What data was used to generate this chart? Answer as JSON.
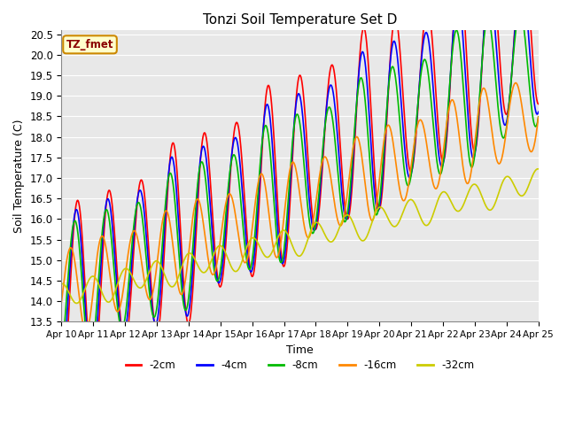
{
  "title": "Tonzi Soil Temperature Set D",
  "xlabel": "Time",
  "ylabel": "Soil Temperature (C)",
  "ylim": [
    13.5,
    20.6
  ],
  "xlim": [
    0,
    360
  ],
  "plot_bg": "#e8e8e8",
  "fig_bg": "#ffffff",
  "grid_color": "#ffffff",
  "annotation_text": "TZ_fmet",
  "annotation_bg": "#ffffcc",
  "annotation_border": "#cc8800",
  "x_tick_labels": [
    "Apr 10",
    "Apr 11",
    "Apr 12",
    "Apr 13",
    "Apr 14",
    "Apr 15",
    "Apr 16",
    "Apr 17",
    "Apr 18",
    "Apr 19",
    "Apr 20",
    "Apr 21",
    "Apr 22",
    "Apr 23",
    "Apr 24",
    "Apr 25"
  ],
  "series": {
    "neg2cm": {
      "label": "-2cm",
      "color": "#ff0000",
      "linewidth": 1.2
    },
    "neg4cm": {
      "label": "-4cm",
      "color": "#0000ff",
      "linewidth": 1.2
    },
    "neg8cm": {
      "label": "-8cm",
      "color": "#00bb00",
      "linewidth": 1.2
    },
    "neg16cm": {
      "label": "-16cm",
      "color": "#ff8800",
      "linewidth": 1.2
    },
    "neg32cm": {
      "label": "-32cm",
      "color": "#cccc00",
      "linewidth": 1.2
    }
  }
}
